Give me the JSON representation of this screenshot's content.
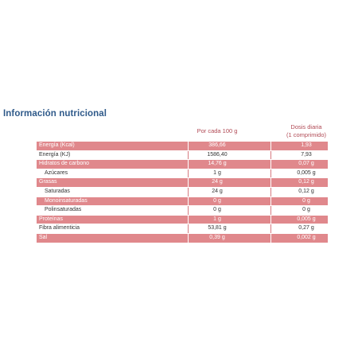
{
  "title": "Información nutricional",
  "headers": {
    "per100": "Por cada 100 g",
    "dose_line1": "Dosis diaria",
    "dose_line2": "(1 comprimido)"
  },
  "rows": [
    {
      "label": "Energía (Kcal)",
      "per100": "386,66",
      "dose": "1,93",
      "shaded": true,
      "indent": false
    },
    {
      "label": "Energía (KJ)",
      "per100": "1586,40",
      "dose": "7,93",
      "shaded": false,
      "indent": false
    },
    {
      "label": "Hidratos de carbono",
      "per100": "14,76 g",
      "dose": "0,07 g",
      "shaded": true,
      "indent": false
    },
    {
      "label": "Azúcares",
      "per100": "1 g",
      "dose": "0,005 g",
      "shaded": false,
      "indent": true
    },
    {
      "label": "Grasas",
      "per100": "24 g",
      "dose": "0,12 g",
      "shaded": true,
      "indent": false
    },
    {
      "label": "Saturadas",
      "per100": "24 g",
      "dose": "0,12 g",
      "shaded": false,
      "indent": true
    },
    {
      "label": "Monoinsaturadas",
      "per100": "0 g",
      "dose": "0 g",
      "shaded": true,
      "indent": true
    },
    {
      "label": "Polinsaturadas",
      "per100": "0 g",
      "dose": "0 g",
      "shaded": false,
      "indent": true
    },
    {
      "label": "Proteínas",
      "per100": "1 g",
      "dose": "0,005 g",
      "shaded": true,
      "indent": false
    },
    {
      "label": "Fibra alimenticia",
      "per100": "53,81 g",
      "dose": "0,27 g",
      "shaded": false,
      "indent": false
    },
    {
      "label": "Sal",
      "per100": "0,39 g",
      "dose": "0,002 g",
      "shaded": true,
      "indent": false
    }
  ],
  "colors": {
    "title": "#2f5a8a",
    "header_text": "#b14a55",
    "shaded_row": "#e0888c",
    "plain_text": "#333333"
  }
}
